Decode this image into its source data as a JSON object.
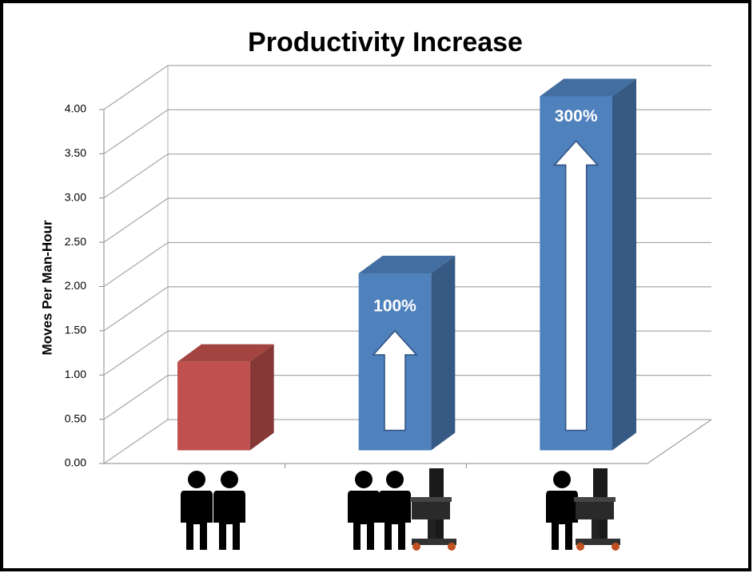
{
  "chart_data": {
    "type": "bar3d",
    "title": "Productivity Increase",
    "y_label": "Moves Per Man-Hour",
    "categories": [
      null,
      null,
      null
    ],
    "values": [
      1.0,
      2.0,
      4.0
    ],
    "colors": [
      "#c0504d",
      "#4f81bd",
      "#4f81bd"
    ],
    "bar_annotations": [
      null,
      "100%",
      "300%"
    ],
    "ylim": [
      0,
      4
    ],
    "yticks": [
      {
        "value": 0,
        "label": "0.00"
      },
      {
        "value": 0.5,
        "label": "0.50"
      },
      {
        "value": 1,
        "label": "1.00"
      },
      {
        "value": 1.5,
        "label": "1.50"
      },
      {
        "value": 2,
        "label": "2.00"
      },
      {
        "value": 2.5,
        "label": "2.50"
      },
      {
        "value": 3,
        "label": "3.00"
      },
      {
        "value": 3.5,
        "label": "3.50"
      },
      {
        "value": 4,
        "label": "4.00"
      }
    ],
    "grid": true
  }
}
